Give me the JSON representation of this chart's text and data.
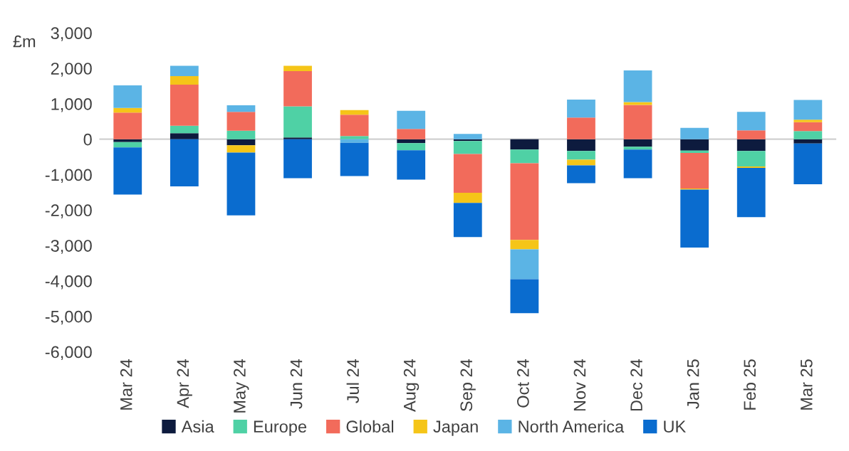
{
  "chart_data": {
    "type": "bar",
    "stacked": true,
    "ylabel": "£m",
    "categories": [
      "Mar 24",
      "Apr 24",
      "May 24",
      "Jun 24",
      "Jul 24",
      "Aug 24",
      "Sep 24",
      "Oct 24",
      "Nov 24",
      "Dec 24",
      "Jan 25",
      "Feb 25",
      "Mar 25"
    ],
    "series": [
      {
        "name": "Asia",
        "color": "#0d1b3e",
        "values": [
          -80,
          170,
          -170,
          50,
          0,
          -110,
          -50,
          -290,
          -330,
          -210,
          -320,
          -330,
          -120
        ]
      },
      {
        "name": "Europe",
        "color": "#4fd1a5",
        "values": [
          -150,
          210,
          240,
          880,
          90,
          -200,
          -370,
          -390,
          -250,
          -80,
          -70,
          -440,
          230
        ]
      },
      {
        "name": "Global",
        "color": "#f26b5b",
        "values": [
          750,
          1160,
          530,
          990,
          600,
          290,
          -1090,
          -2160,
          610,
          970,
          -1000,
          250,
          250
        ]
      },
      {
        "name": "Japan",
        "color": "#f5c518",
        "values": [
          130,
          240,
          -210,
          150,
          130,
          0,
          -290,
          -270,
          -160,
          80,
          -30,
          -40,
          70
        ]
      },
      {
        "name": "North America",
        "color": "#5bb4e5",
        "values": [
          640,
          290,
          190,
          0,
          -100,
          510,
          150,
          -840,
          510,
          890,
          320,
          520,
          560
        ]
      },
      {
        "name": "UK",
        "color": "#0a6ccf",
        "values": [
          -1330,
          -1330,
          -1770,
          -1100,
          -940,
          -830,
          -960,
          -960,
          -500,
          -810,
          -1640,
          -1390,
          -1150
        ]
      }
    ],
    "ylim": [
      -6000,
      3000
    ],
    "yticks": [
      {
        "value": -6000,
        "label": "-6,000"
      },
      {
        "value": -5000,
        "label": "-5,000"
      },
      {
        "value": -4000,
        "label": "-4,000"
      },
      {
        "value": -3000,
        "label": "-3,000"
      },
      {
        "value": -2000,
        "label": "-2,000"
      },
      {
        "value": -1000,
        "label": "-1,000"
      },
      0,
      {
        "value": 1000,
        "label": "1,000"
      },
      {
        "value": 2000,
        "label": "2,000"
      },
      {
        "value": 3000,
        "label": "3,000"
      }
    ],
    "ref_lines": [
      {
        "axis": "y",
        "value": 0,
        "color": "#d0d0d0"
      }
    ],
    "legend": "bottom"
  }
}
